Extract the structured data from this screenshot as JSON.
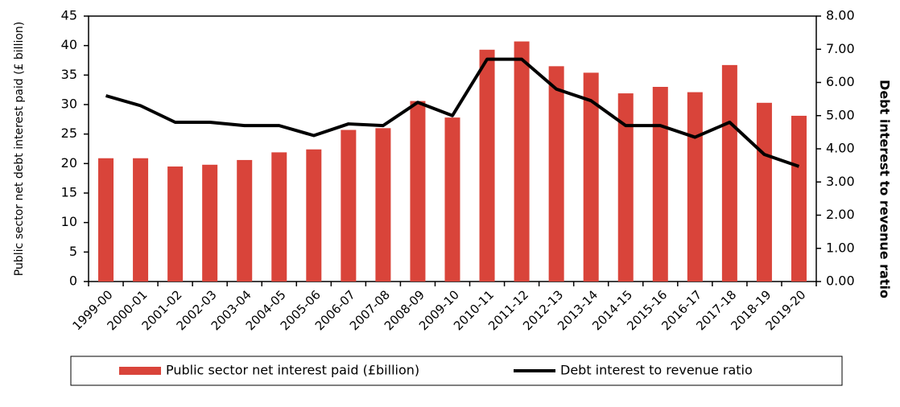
{
  "chart_data": {
    "type": "bar_line",
    "categories": [
      "1999-00",
      "2000-01",
      "2001-02",
      "2002-03",
      "2003-04",
      "2004-05",
      "2005-06",
      "2006-07",
      "2007-08",
      "2008-09",
      "2009-10",
      "2010-11",
      "2011-12",
      "2012-13",
      "2013-14",
      "2014-15",
      "2015-16",
      "2016-17",
      "2017-18",
      "2018-19",
      "2019-20"
    ],
    "ylabel": "Public sector net debt interest paid (£ billion)",
    "y2label": "Debt interest to revenue ratio",
    "ylim": [
      0,
      45
    ],
    "yticks": [
      0,
      5,
      10,
      15,
      20,
      25,
      30,
      35,
      40,
      45
    ],
    "y2lim": [
      0,
      8
    ],
    "y2ticks": [
      {
        "value": 0,
        "label": "0.00"
      },
      {
        "value": 1,
        "label": "1.00"
      },
      {
        "value": 2,
        "label": "2.00"
      },
      {
        "value": 3,
        "label": "3.00"
      },
      {
        "value": 4,
        "label": "4.00"
      },
      {
        "value": 5,
        "label": "5.00"
      },
      {
        "value": 6,
        "label": "6.00"
      },
      {
        "value": 7,
        "label": "7.00"
      },
      {
        "value": 8,
        "label": "8.00"
      }
    ],
    "legend": "bottom",
    "series": [
      {
        "name": "Public sector net interest paid (£billion)",
        "type": "bar",
        "color": "#d9443a",
        "values": [
          20.9,
          20.9,
          19.5,
          19.8,
          20.6,
          21.9,
          22.4,
          25.7,
          26.0,
          30.6,
          27.8,
          39.3,
          40.7,
          36.5,
          35.4,
          31.9,
          33.0,
          32.1,
          36.7,
          30.3,
          28.1
        ]
      },
      {
        "name": "Debt interest to revenue ratio",
        "type": "line",
        "axis": "y2",
        "color": "#000000",
        "values": [
          5.6,
          5.3,
          4.8,
          4.8,
          4.7,
          4.7,
          4.4,
          4.75,
          4.7,
          5.4,
          5.0,
          6.7,
          6.7,
          5.8,
          5.45,
          4.7,
          4.7,
          4.35,
          4.8,
          3.83,
          3.47
        ]
      }
    ]
  }
}
